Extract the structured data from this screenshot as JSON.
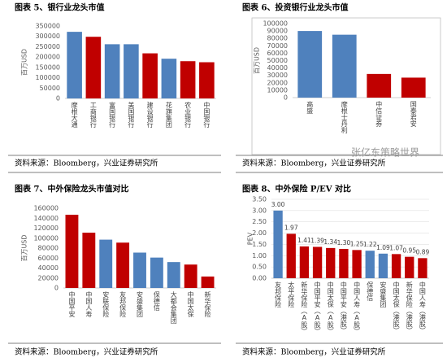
{
  "watermark": "张亿东策略世界",
  "chart_data": [
    {
      "type": "bar",
      "title": "图表 5、银行业龙头市值",
      "source": "资料来源：Bloomberg，兴业证券研究所",
      "ylabel": "百万USD",
      "categories": [
        "摩根大通",
        "工商银行",
        "富国银行",
        "美国银行",
        "建设银行",
        "花旗集团",
        "农业银行",
        "中国银行"
      ],
      "values": [
        322000,
        298000,
        262000,
        262000,
        218000,
        192000,
        180000,
        175000
      ],
      "colors": [
        "#4f81bd",
        "#c00000",
        "#4f81bd",
        "#4f81bd",
        "#c00000",
        "#4f81bd",
        "#c00000",
        "#c00000"
      ],
      "ylim": [
        0,
        350000
      ],
      "yticks": [
        0,
        50000,
        100000,
        150000,
        200000,
        250000,
        300000,
        350000
      ]
    },
    {
      "type": "bar",
      "title": "图表 6、投资银行业龙头市值",
      "source": "资料来源：Bloomberg，兴业证券研究所",
      "ylabel": "百万USD",
      "categories": [
        "高盛",
        "摩根士丹利",
        "中信证券",
        "国泰君安"
      ],
      "values": [
        90000,
        85000,
        32000,
        27000
      ],
      "colors": [
        "#4f81bd",
        "#4f81bd",
        "#c00000",
        "#c00000"
      ],
      "ylim": [
        0,
        100000
      ],
      "yticks": [
        0,
        10000,
        20000,
        30000,
        40000,
        50000,
        60000,
        70000,
        80000,
        90000,
        100000
      ]
    },
    {
      "type": "bar",
      "title": "图表 7、中外保险龙头市值对比",
      "source": "资料来源：Bloomberg，兴业证券研究所",
      "ylabel": "百万USD",
      "categories": [
        "中国平安",
        "中国人寿",
        "安联保险",
        "友邦保险",
        "安盛集团",
        "保德信",
        "大都会集团",
        "中国太保",
        "新华保险"
      ],
      "values": [
        147000,
        111000,
        97000,
        91000,
        71000,
        61000,
        52000,
        47000,
        23000
      ],
      "colors": [
        "#c00000",
        "#c00000",
        "#4f81bd",
        "#c00000",
        "#4f81bd",
        "#4f81bd",
        "#4f81bd",
        "#c00000",
        "#c00000"
      ],
      "ylim": [
        0,
        160000
      ],
      "yticks": [
        0,
        20000,
        40000,
        60000,
        80000,
        100000,
        120000,
        140000,
        160000
      ]
    },
    {
      "type": "bar",
      "title": "图表 8、中外保险 P/EV 对比",
      "source": "资料来源：Bloomberg，兴业证券研究所",
      "ylabel": "PEV",
      "categories": [
        "友邦保险",
        "太平保险",
        "新华保险（A股）",
        "中国平安（A股）",
        "中国太保（A股）",
        "中国平安（港股）",
        "中国人寿（A股）",
        "保德信",
        "安盛集团",
        "中国太保（港股）",
        "新华保险（港股）",
        "中国人寿（港股）"
      ],
      "values": [
        3.0,
        1.97,
        1.41,
        1.39,
        1.34,
        1.3,
        1.25,
        1.22,
        1.09,
        1.07,
        0.95,
        0.89
      ],
      "value_labels": [
        "3.00",
        "1.97",
        "1.41",
        "1.39",
        "1.34",
        "1.30",
        "1.25",
        "1.22",
        "1.09",
        "1.07",
        "0.95",
        "0.89"
      ],
      "colors": [
        "#4f81bd",
        "#c00000",
        "#c00000",
        "#c00000",
        "#c00000",
        "#c00000",
        "#c00000",
        "#4f81bd",
        "#4f81bd",
        "#c00000",
        "#c00000",
        "#c00000"
      ],
      "ylim": [
        0,
        3.5
      ],
      "yticks": [
        {
          "value": 0,
          "label": "0.00"
        },
        {
          "value": 0.5,
          "label": "0.50"
        },
        {
          "value": 1,
          "label": "1.00"
        },
        {
          "value": 1.5,
          "label": "1.50"
        },
        {
          "value": 2,
          "label": "2.00"
        },
        {
          "value": 2.5,
          "label": "2.50"
        },
        {
          "value": 3,
          "label": "3.00"
        },
        {
          "value": 3.5,
          "label": "3.50"
        }
      ]
    }
  ]
}
